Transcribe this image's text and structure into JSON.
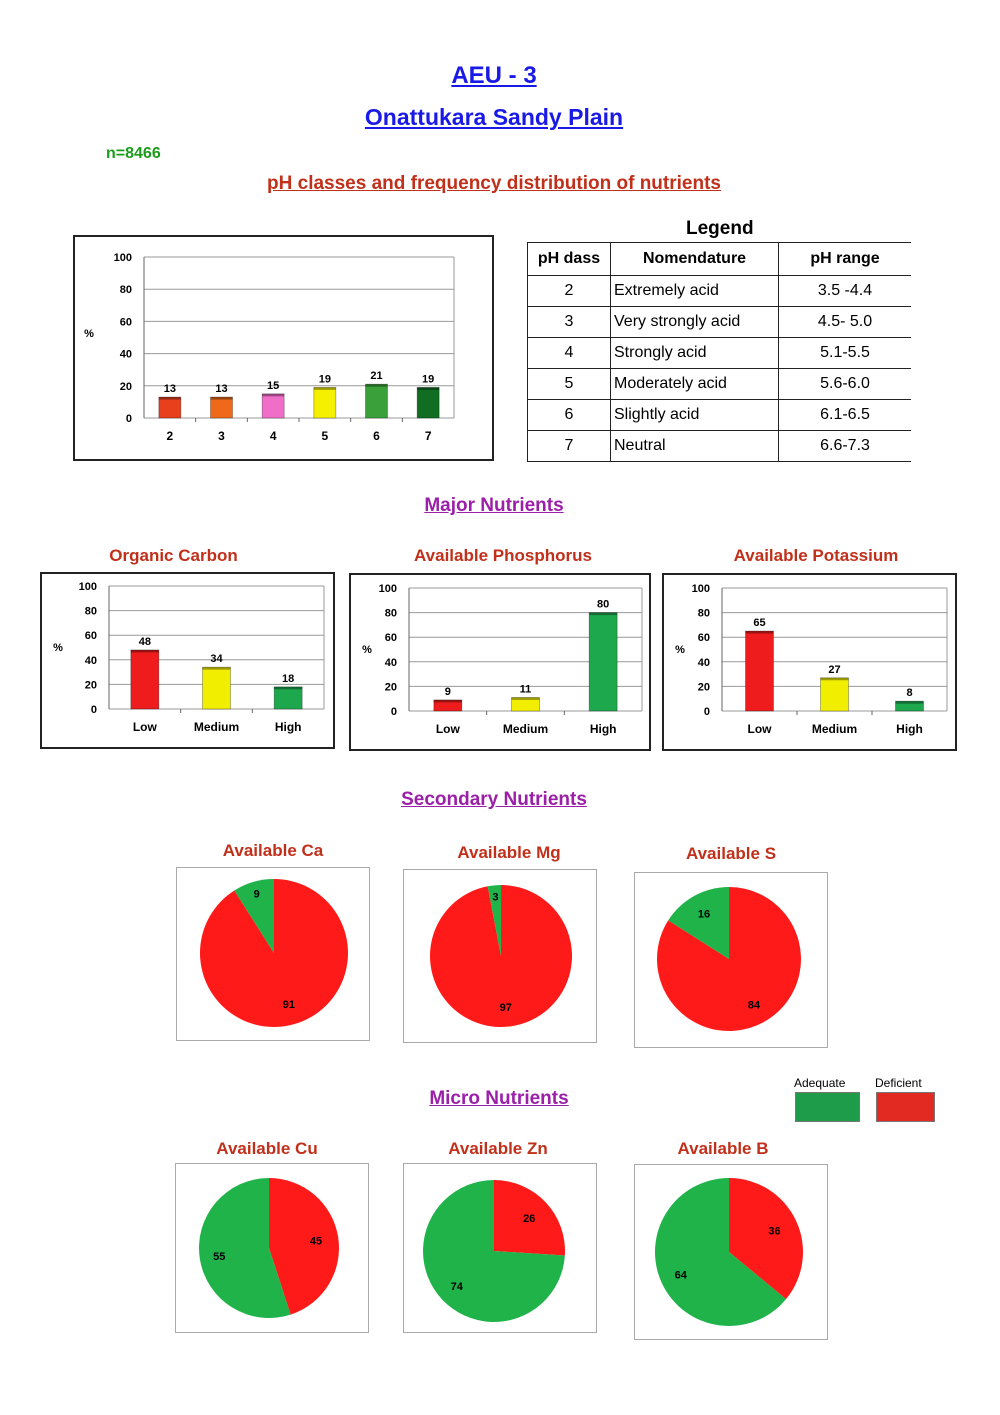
{
  "header": {
    "title": "AEU - 3",
    "subtitle": "Onattukara Sandy Plain",
    "n_label": "n=8466"
  },
  "sections": {
    "ph": "pH classes and frequency distribution of nutrients",
    "major": "Major Nutrients",
    "secondary": "Secondary Nutrients",
    "micro": "Micro Nutrients"
  },
  "legend_table": {
    "title": "Legend",
    "headers": [
      "pH dass",
      "Nomendature",
      "pH range"
    ],
    "rows": [
      [
        "2",
        "Extremely acid",
        "3.5 -4.4"
      ],
      [
        "3",
        "Very strongly acid",
        "4.5- 5.0"
      ],
      [
        "4",
        "Strongly acid",
        "5.1-5.5"
      ],
      [
        "5",
        "Moderately acid",
        "5.6-6.0"
      ],
      [
        "6",
        "Slightly acid",
        "6.1-6.5"
      ],
      [
        "7",
        "Neutral",
        "6.6-7.3"
      ]
    ]
  },
  "status_legend": {
    "adequate": "Adequate",
    "deficient": "Deficient",
    "adequate_color": "#1e9c4a",
    "deficient_color": "#e32a22"
  },
  "chart_data": [
    {
      "id": "ph",
      "type": "bar",
      "title": "",
      "ylabel": "%",
      "ylim": [
        0,
        100
      ],
      "yticks": [
        0,
        20,
        40,
        60,
        80,
        100
      ],
      "categories": [
        "2",
        "3",
        "4",
        "5",
        "6",
        "7"
      ],
      "values": [
        13,
        13,
        15,
        19,
        21,
        19
      ],
      "colors": [
        "#e8401c",
        "#ee6a1a",
        "#f06ec8",
        "#f5f000",
        "#3aa03a",
        "#0f6e22"
      ],
      "grid": true
    },
    {
      "id": "oc",
      "type": "bar",
      "title": "Organic Carbon",
      "ylabel": "%",
      "ylim": [
        0,
        100
      ],
      "yticks": [
        0,
        20,
        40,
        60,
        80,
        100
      ],
      "categories": [
        "Low",
        "Medium",
        "High"
      ],
      "values": [
        48,
        34,
        18
      ],
      "colors": [
        "#ee1c1c",
        "#f2ee00",
        "#1ea84e"
      ],
      "grid": true
    },
    {
      "id": "p",
      "type": "bar",
      "title": "Available Phosphorus",
      "ylabel": "%",
      "ylim": [
        0,
        100
      ],
      "yticks": [
        0,
        20,
        40,
        60,
        80,
        100
      ],
      "categories": [
        "Low",
        "Medium",
        "High"
      ],
      "values": [
        9,
        11,
        80
      ],
      "colors": [
        "#ee1c1c",
        "#f2ee00",
        "#1ea84e"
      ],
      "grid": true
    },
    {
      "id": "k",
      "type": "bar",
      "title": "Available Potassium",
      "ylabel": "%",
      "ylim": [
        0,
        100
      ],
      "yticks": [
        0,
        20,
        40,
        60,
        80,
        100
      ],
      "categories": [
        "Low",
        "Medium",
        "High"
      ],
      "values": [
        65,
        27,
        8
      ],
      "colors": [
        "#ee1c1c",
        "#f2ee00",
        "#1ea84e"
      ],
      "grid": true
    },
    {
      "id": "ca",
      "type": "pie",
      "title": "Available Ca",
      "adequate": 9,
      "deficient": 91
    },
    {
      "id": "mg",
      "type": "pie",
      "title": "Available Mg",
      "adequate": 3,
      "deficient": 97
    },
    {
      "id": "s",
      "type": "pie",
      "title": "Available S",
      "adequate": 16,
      "deficient": 84
    },
    {
      "id": "cu",
      "type": "pie",
      "title": "Available Cu",
      "adequate": 55,
      "deficient": 45
    },
    {
      "id": "zn",
      "type": "pie",
      "title": "Available Zn",
      "adequate": 74,
      "deficient": 26
    },
    {
      "id": "b",
      "type": "pie",
      "title": "Available B",
      "adequate": 64,
      "deficient": 36
    }
  ]
}
